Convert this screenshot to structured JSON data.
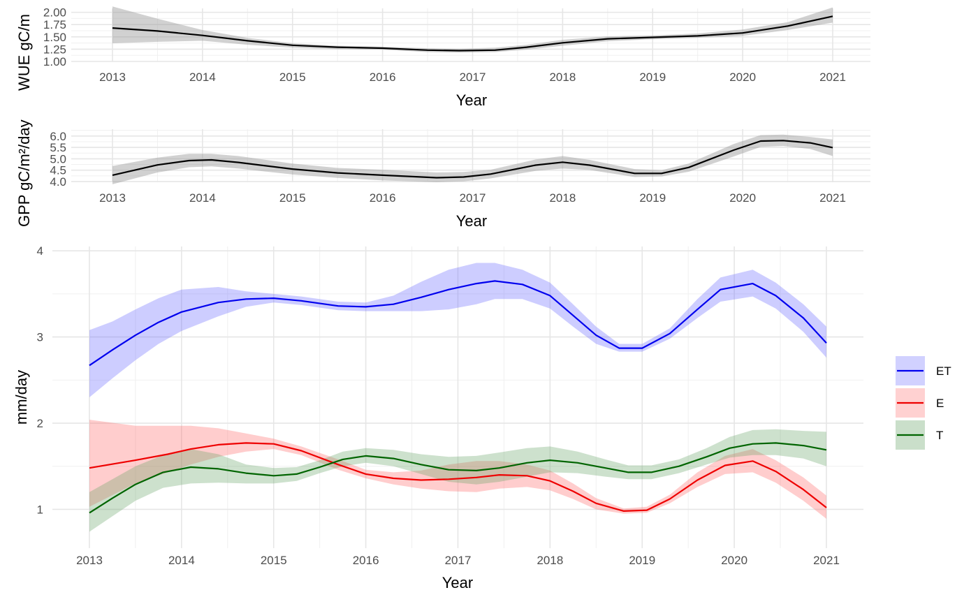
{
  "chart_data": [
    {
      "type": "line",
      "panel": "wue",
      "xlabel": "Year",
      "ylabel": "WUE gC/m",
      "x_ticks": [
        2013,
        2014,
        2015,
        2016,
        2017,
        2018,
        2019,
        2020,
        2021
      ],
      "y_ticks": [
        "1.00",
        "1.25",
        "1.50",
        "1.75",
        "2.00"
      ],
      "xlim": [
        2013,
        2021
      ],
      "ylim": [
        1.0,
        2.08
      ],
      "grid": true,
      "series": [
        {
          "color": "#000000",
          "band_color": "#999999",
          "x": [
            2013.0,
            2013.5,
            2014.0,
            2014.5,
            2015.0,
            2015.5,
            2016.0,
            2016.5,
            2016.85,
            2017.25,
            2017.6,
            2018.0,
            2018.5,
            2019.0,
            2019.5,
            2020.0,
            2020.5,
            2021.0
          ],
          "y": [
            1.68,
            1.62,
            1.53,
            1.42,
            1.33,
            1.29,
            1.27,
            1.23,
            1.22,
            1.23,
            1.29,
            1.38,
            1.46,
            1.49,
            1.52,
            1.58,
            1.72,
            1.92
          ],
          "lower": [
            1.37,
            1.4,
            1.42,
            1.34,
            1.28,
            1.25,
            1.24,
            1.19,
            1.18,
            1.19,
            1.24,
            1.32,
            1.41,
            1.45,
            1.48,
            1.52,
            1.64,
            1.79
          ],
          "upper": [
            2.12,
            1.87,
            1.64,
            1.48,
            1.37,
            1.32,
            1.3,
            1.27,
            1.26,
            1.28,
            1.34,
            1.44,
            1.51,
            1.53,
            1.57,
            1.65,
            1.8,
            2.1
          ]
        }
      ]
    },
    {
      "type": "line",
      "panel": "gpp",
      "xlabel": "Year",
      "ylabel": "GPP gC/m²/day",
      "x_ticks": [
        2013,
        2014,
        2015,
        2016,
        2017,
        2018,
        2019,
        2020,
        2021
      ],
      "y_ticks": [
        "4.0",
        "4.5",
        "5.0",
        "5.5",
        "6.0"
      ],
      "xlim": [
        2013,
        2021
      ],
      "ylim": [
        3.97,
        6.3
      ],
      "grid": true,
      "series": [
        {
          "color": "#000000",
          "band_color": "#999999",
          "x": [
            2013.0,
            2013.5,
            2013.85,
            2014.1,
            2014.4,
            2015.0,
            2015.5,
            2016.0,
            2016.6,
            2016.9,
            2017.2,
            2017.7,
            2018.0,
            2018.3,
            2018.8,
            2019.1,
            2019.4,
            2019.9,
            2020.2,
            2020.45,
            2020.75,
            2021.0
          ],
          "y": [
            4.28,
            4.73,
            4.92,
            4.95,
            4.84,
            4.55,
            4.38,
            4.28,
            4.17,
            4.2,
            4.33,
            4.72,
            4.85,
            4.72,
            4.36,
            4.36,
            4.62,
            5.38,
            5.78,
            5.8,
            5.7,
            5.49
          ],
          "lower": [
            3.88,
            4.4,
            4.63,
            4.67,
            4.57,
            4.31,
            4.16,
            4.05,
            3.97,
            4.01,
            4.14,
            4.47,
            4.57,
            4.51,
            4.2,
            4.22,
            4.43,
            5.1,
            5.52,
            5.56,
            5.43,
            5.12
          ],
          "upper": [
            4.68,
            5.05,
            5.22,
            5.22,
            5.12,
            4.79,
            4.6,
            4.52,
            4.4,
            4.42,
            4.52,
            4.97,
            5.12,
            4.95,
            4.55,
            4.5,
            4.79,
            5.65,
            6.04,
            6.06,
            5.96,
            5.85
          ]
        }
      ]
    },
    {
      "type": "line",
      "panel": "et",
      "xlabel": "Year",
      "ylabel": "mm/day",
      "x_ticks": [
        2013,
        2014,
        2015,
        2016,
        2017,
        2018,
        2019,
        2020,
        2021
      ],
      "y_ticks": [
        "1",
        "2",
        "3",
        "4"
      ],
      "xlim": [
        2013,
        2021
      ],
      "ylim": [
        0.55,
        4.05
      ],
      "grid": true,
      "legend_position": "right",
      "series": [
        {
          "name": "ET",
          "color": "#0000ee",
          "band_color": "#6666ff",
          "x": [
            2013.0,
            2013.25,
            2013.5,
            2013.75,
            2014.0,
            2014.4,
            2014.7,
            2015.0,
            2015.3,
            2015.7,
            2016.0,
            2016.3,
            2016.6,
            2016.9,
            2017.2,
            2017.4,
            2017.7,
            2018.0,
            2018.25,
            2018.5,
            2018.75,
            2019.0,
            2019.3,
            2019.6,
            2019.85,
            2020.2,
            2020.45,
            2020.75,
            2021.0
          ],
          "y": [
            2.67,
            2.85,
            3.02,
            3.17,
            3.29,
            3.4,
            3.44,
            3.45,
            3.42,
            3.36,
            3.35,
            3.38,
            3.46,
            3.55,
            3.62,
            3.65,
            3.61,
            3.48,
            3.25,
            3.02,
            2.87,
            2.87,
            3.04,
            3.32,
            3.55,
            3.62,
            3.48,
            3.22,
            2.93
          ],
          "lower": [
            2.3,
            2.52,
            2.73,
            2.92,
            3.07,
            3.24,
            3.35,
            3.4,
            3.37,
            3.31,
            3.3,
            3.3,
            3.3,
            3.32,
            3.38,
            3.44,
            3.44,
            3.33,
            3.12,
            2.92,
            2.83,
            2.83,
            2.98,
            3.22,
            3.41,
            3.47,
            3.33,
            3.06,
            2.76
          ],
          "upper": [
            3.08,
            3.18,
            3.32,
            3.45,
            3.55,
            3.58,
            3.53,
            3.5,
            3.47,
            3.41,
            3.4,
            3.48,
            3.64,
            3.78,
            3.86,
            3.86,
            3.78,
            3.63,
            3.38,
            3.12,
            2.92,
            2.92,
            3.1,
            3.44,
            3.69,
            3.78,
            3.63,
            3.38,
            3.12
          ]
        },
        {
          "name": "E",
          "color": "#ee0000",
          "band_color": "#ff6666",
          "x": [
            2013.0,
            2013.5,
            2013.85,
            2014.1,
            2014.4,
            2014.7,
            2015.0,
            2015.3,
            2015.7,
            2016.0,
            2016.3,
            2016.6,
            2016.9,
            2017.2,
            2017.45,
            2017.75,
            2018.0,
            2018.25,
            2018.5,
            2018.8,
            2019.05,
            2019.3,
            2019.6,
            2019.9,
            2020.2,
            2020.45,
            2020.75,
            2021.0
          ],
          "y": [
            1.48,
            1.57,
            1.64,
            1.7,
            1.75,
            1.77,
            1.76,
            1.68,
            1.52,
            1.41,
            1.36,
            1.34,
            1.35,
            1.37,
            1.4,
            1.39,
            1.33,
            1.21,
            1.07,
            0.98,
            0.99,
            1.12,
            1.34,
            1.51,
            1.56,
            1.44,
            1.23,
            1.02
          ],
          "lower": [
            1.03,
            1.3,
            1.43,
            1.52,
            1.61,
            1.67,
            1.7,
            1.63,
            1.46,
            1.36,
            1.29,
            1.24,
            1.21,
            1.2,
            1.24,
            1.26,
            1.22,
            1.12,
            1.0,
            0.95,
            0.96,
            1.07,
            1.26,
            1.41,
            1.43,
            1.31,
            1.1,
            0.89
          ],
          "upper": [
            2.04,
            1.97,
            1.97,
            1.97,
            1.94,
            1.88,
            1.82,
            1.73,
            1.58,
            1.46,
            1.43,
            1.45,
            1.52,
            1.56,
            1.56,
            1.52,
            1.45,
            1.3,
            1.13,
            1.01,
            1.03,
            1.17,
            1.43,
            1.62,
            1.7,
            1.57,
            1.37,
            1.16
          ]
        },
        {
          "name": "T",
          "color": "#006400",
          "band_color": "#66a366",
          "x": [
            2013.0,
            2013.25,
            2013.5,
            2013.8,
            2014.1,
            2014.4,
            2014.7,
            2015.0,
            2015.25,
            2015.5,
            2015.75,
            2016.0,
            2016.3,
            2016.6,
            2016.9,
            2017.2,
            2017.45,
            2017.75,
            2018.0,
            2018.3,
            2018.6,
            2018.85,
            2019.1,
            2019.4,
            2019.7,
            2019.95,
            2020.2,
            2020.45,
            2020.75,
            2021.0
          ],
          "y": [
            0.96,
            1.13,
            1.29,
            1.43,
            1.49,
            1.47,
            1.42,
            1.39,
            1.41,
            1.49,
            1.58,
            1.62,
            1.59,
            1.52,
            1.46,
            1.45,
            1.48,
            1.54,
            1.57,
            1.54,
            1.48,
            1.43,
            1.43,
            1.5,
            1.61,
            1.71,
            1.76,
            1.77,
            1.74,
            1.69
          ],
          "lower": [
            0.74,
            0.92,
            1.1,
            1.25,
            1.3,
            1.31,
            1.3,
            1.3,
            1.33,
            1.42,
            1.5,
            1.54,
            1.5,
            1.41,
            1.32,
            1.29,
            1.32,
            1.38,
            1.43,
            1.42,
            1.38,
            1.35,
            1.35,
            1.42,
            1.52,
            1.6,
            1.63,
            1.63,
            1.59,
            1.5
          ],
          "upper": [
            1.2,
            1.35,
            1.5,
            1.63,
            1.7,
            1.64,
            1.52,
            1.48,
            1.49,
            1.57,
            1.67,
            1.71,
            1.69,
            1.64,
            1.61,
            1.62,
            1.66,
            1.71,
            1.73,
            1.67,
            1.58,
            1.51,
            1.51,
            1.58,
            1.71,
            1.84,
            1.92,
            1.93,
            1.91,
            1.9
          ]
        }
      ]
    }
  ]
}
